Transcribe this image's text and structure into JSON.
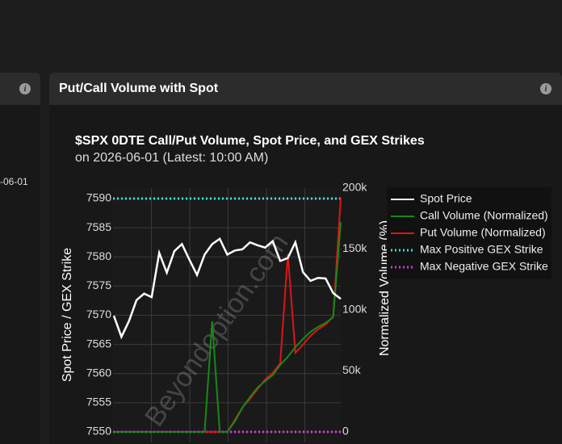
{
  "left_panel": {
    "date_fragment": "-06-01",
    "info_icon": "i"
  },
  "panel": {
    "title": "Put/Call Volume with Spot",
    "info_icon": "i"
  },
  "chart_data": {
    "type": "line",
    "title": "$SPX 0DTE Call/Put Volume, Spot Price, and GEX Strikes",
    "subtitle": "on 2026-06-01 (Latest: 10:00 AM)",
    "watermark": "Beyondoption.com",
    "y_label": "Spot Price / GEX Strike",
    "y2_label": "Normalized Volume (%)",
    "categories": [
      null,
      null,
      null,
      null,
      null,
      null,
      null,
      null,
      null,
      null,
      null,
      null,
      null,
      null,
      null,
      null,
      null,
      null,
      null,
      null,
      null,
      null,
      null,
      null,
      null,
      null,
      null,
      null,
      null,
      null,
      null
    ],
    "ylim": [
      7548.2,
      7591.8
    ],
    "yticks": [
      7550,
      7555,
      7560,
      7565,
      7570,
      7575,
      7580,
      7585,
      7590
    ],
    "y2lim": [
      -8600,
      200000
    ],
    "y2ticks": [
      {
        "value": 0,
        "label": "0"
      },
      {
        "value": 50000,
        "label": "50k"
      },
      {
        "value": 100000,
        "label": "100k"
      },
      {
        "value": 150000,
        "label": "150k"
      },
      {
        "value": 200000,
        "label": "200k"
      }
    ],
    "grid": true,
    "legend": "right",
    "series": [
      {
        "name": "Spot Price",
        "color": "#ffffff",
        "axis": "y",
        "values": [
          7569.9,
          7566.3,
          7569.0,
          7572.6,
          7573.7,
          7573.1,
          7580.7,
          7577.3,
          7581.0,
          7582.2,
          7579.5,
          7576.9,
          7580.4,
          7582.2,
          7583.1,
          7580.4,
          7581.1,
          7581.3,
          7582.5,
          7582.0,
          7581.6,
          7582.7,
          7579.3,
          7579.8,
          7582.5,
          7577.4,
          7575.9,
          7576.4,
          7576.3,
          7573.8,
          7572.8
        ]
      },
      {
        "name": "Call Volume (Normalized)",
        "color": "#178a17",
        "axis": "y2",
        "values": [
          0,
          0,
          0,
          0,
          0,
          0,
          0,
          0,
          0,
          0,
          0,
          0,
          0,
          90700,
          0,
          0,
          8600,
          19900,
          28500,
          36400,
          41700,
          46400,
          55000,
          61600,
          69500,
          76200,
          82100,
          86100,
          89400,
          94000,
          172000
        ]
      },
      {
        "name": "Put Volume (Normalized)",
        "color": "#e01414",
        "axis": "y2",
        "values": [
          0,
          0,
          0,
          0,
          0,
          0,
          0,
          0,
          0,
          0,
          0,
          0,
          0,
          0,
          0,
          0,
          9900,
          19900,
          27200,
          35100,
          43000,
          48300,
          56300,
          145700,
          64900,
          71500,
          78800,
          84100,
          88100,
          94700,
          192000
        ]
      }
    ],
    "levels": [
      {
        "name": "Max Positive GEX Strike",
        "color": "#33e0e0",
        "value": 7590
      },
      {
        "name": "Max Negative GEX Strike",
        "color": "#e033e0",
        "value": 7550
      }
    ]
  }
}
